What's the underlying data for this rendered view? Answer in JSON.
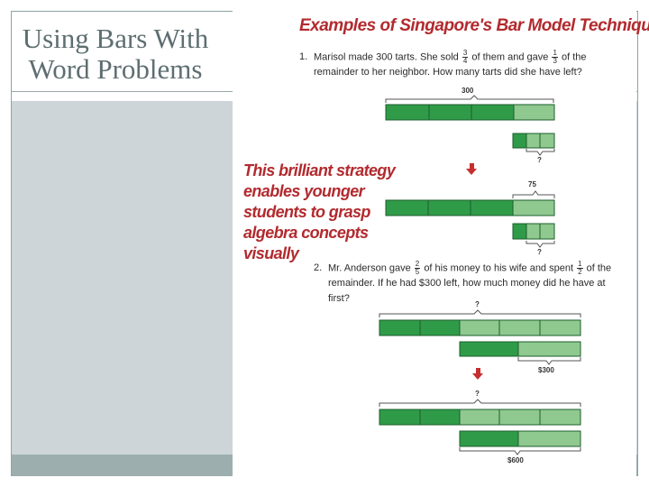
{
  "slide": {
    "title": "Using Bars With Word Problems"
  },
  "figure": {
    "heading": "Examples of Singapore's Bar Model Technique",
    "callout": "This brilliant strategy enables younger students to grasp algebra concepts visually",
    "problem1": {
      "number": "1.",
      "text_a": "Marisol made 300 tarts. She sold",
      "frac_a": {
        "num": "3",
        "den": "4"
      },
      "text_b": "of them and gave",
      "frac_b": {
        "num": "1",
        "den": "3"
      },
      "text_c": "of the remainder to her neighbor. How many tarts did she have left?",
      "label_total": "300",
      "label_step": "75",
      "label_q1": "?",
      "label_q2": "?"
    },
    "problem2": {
      "number": "2.",
      "text_a": "Mr. Anderson gave",
      "frac_a": {
        "num": "2",
        "den": "5"
      },
      "text_b": "of his money to his wife and spent",
      "frac_b": {
        "num": "1",
        "den": "2"
      },
      "text_c": "of the remainder. If he had $300 left, how much money did he have at first?",
      "label_q1": "?",
      "label_left": "$300",
      "label_q2": "?",
      "label_total": "$600"
    },
    "colors": {
      "dark_green": "#2f9b48",
      "light_green": "#8fc98f",
      "heading_red": "#b22a2e"
    }
  }
}
